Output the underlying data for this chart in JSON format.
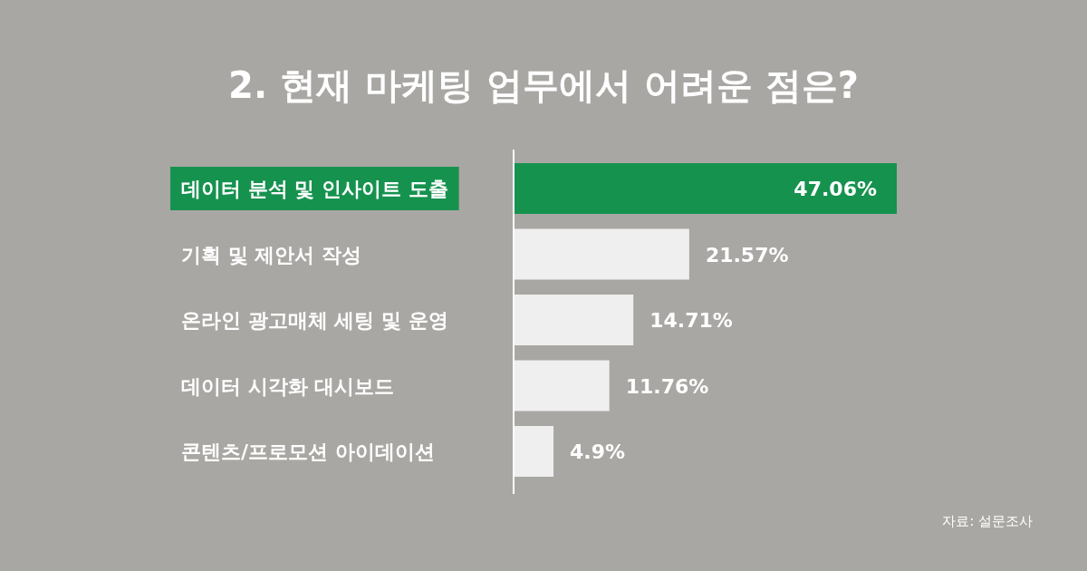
{
  "chart_data": {
    "type": "bar",
    "orientation": "horizontal",
    "title": "2. 현재 마케팅 업무에서 어려운 점은?",
    "categories": [
      "데이터 분석 및 인사이트 도출",
      "기획 및 제안서 작성",
      "온라인 광고매체 세팅 및 운영",
      "데이터 시각화 대시보드",
      "콘텐츠/프로모션 아이데이션"
    ],
    "values": [
      47.06,
      21.57,
      14.71,
      11.76,
      4.9
    ],
    "value_labels": [
      "47.06%",
      "21.57%",
      "14.71%",
      "11.76%",
      "4.9%"
    ],
    "colors": [
      "#16924f",
      "#efefef",
      "#efefef",
      "#efefef",
      "#efefef"
    ],
    "annotations": [
      "자료: 설문조사"
    ]
  }
}
